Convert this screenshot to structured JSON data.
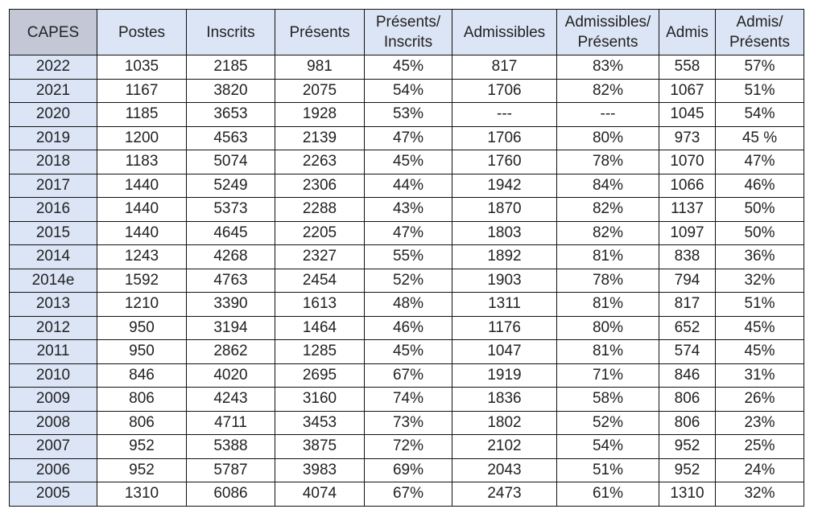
{
  "table": {
    "headers": [
      "CAPES",
      "Postes",
      "Inscrits",
      "Présents",
      "Présents/\nInscrits",
      "Admissibles",
      "Admissibles/\nPrésents",
      "Admis",
      "Admis/\nPrésents"
    ],
    "rows": [
      [
        "2022",
        "1035",
        "2185",
        "981",
        "45%",
        "817",
        "83%",
        "558",
        "57%"
      ],
      [
        "2021",
        "1167",
        "3820",
        "2075",
        "54%",
        "1706",
        "82%",
        "1067",
        "51%"
      ],
      [
        "2020",
        "1185",
        "3653",
        "1928",
        "53%",
        "---",
        "---",
        "1045",
        "54%"
      ],
      [
        "2019",
        "1200",
        "4563",
        "2139",
        "47%",
        "1706",
        "80%",
        "973",
        "45 %"
      ],
      [
        "2018",
        "1183",
        "5074",
        "2263",
        "45%",
        "1760",
        "78%",
        "1070",
        "47%"
      ],
      [
        "2017",
        "1440",
        "5249",
        "2306",
        "44%",
        "1942",
        "84%",
        "1066",
        "46%"
      ],
      [
        "2016",
        "1440",
        "5373",
        "2288",
        "43%",
        "1870",
        "82%",
        "1137",
        "50%"
      ],
      [
        "2015",
        "1440",
        "4645",
        "2205",
        "47%",
        "1803",
        "82%",
        "1097",
        "50%"
      ],
      [
        "2014",
        "1243",
        "4268",
        "2327",
        "55%",
        "1892",
        "81%",
        "838",
        "36%"
      ],
      [
        "2014e",
        "1592",
        "4763",
        "2454",
        "52%",
        "1903",
        "78%",
        "794",
        "32%"
      ],
      [
        "2013",
        "1210",
        "3390",
        "1613",
        "48%",
        "1311",
        "81%",
        "817",
        "51%"
      ],
      [
        "2012",
        "950",
        "3194",
        "1464",
        "46%",
        "1176",
        "80%",
        "652",
        "45%"
      ],
      [
        "2011",
        "950",
        "2862",
        "1285",
        "45%",
        "1047",
        "81%",
        "574",
        "45%"
      ],
      [
        "2010",
        "846",
        "4020",
        "2695",
        "67%",
        "1919",
        "71%",
        "846",
        "31%"
      ],
      [
        "2009",
        "806",
        "4243",
        "3160",
        "74%",
        "1836",
        "58%",
        "806",
        "26%"
      ],
      [
        "2008",
        "806",
        "4711",
        "3453",
        "73%",
        "1802",
        "52%",
        "806",
        "23%"
      ],
      [
        "2007",
        "952",
        "5388",
        "3875",
        "72%",
        "2102",
        "54%",
        "952",
        "25%"
      ],
      [
        "2006",
        "952",
        "5787",
        "3983",
        "69%",
        "2043",
        "51%",
        "952",
        "24%"
      ],
      [
        "2005",
        "1310",
        "6086",
        "4074",
        "67%",
        "2473",
        "61%",
        "1310",
        "32%"
      ]
    ]
  },
  "colors": {
    "corner_header_bg": "#c4c8d6",
    "header_bg": "#dce5f6",
    "year_column_bg": "#dce5f6",
    "border": "#111111"
  }
}
